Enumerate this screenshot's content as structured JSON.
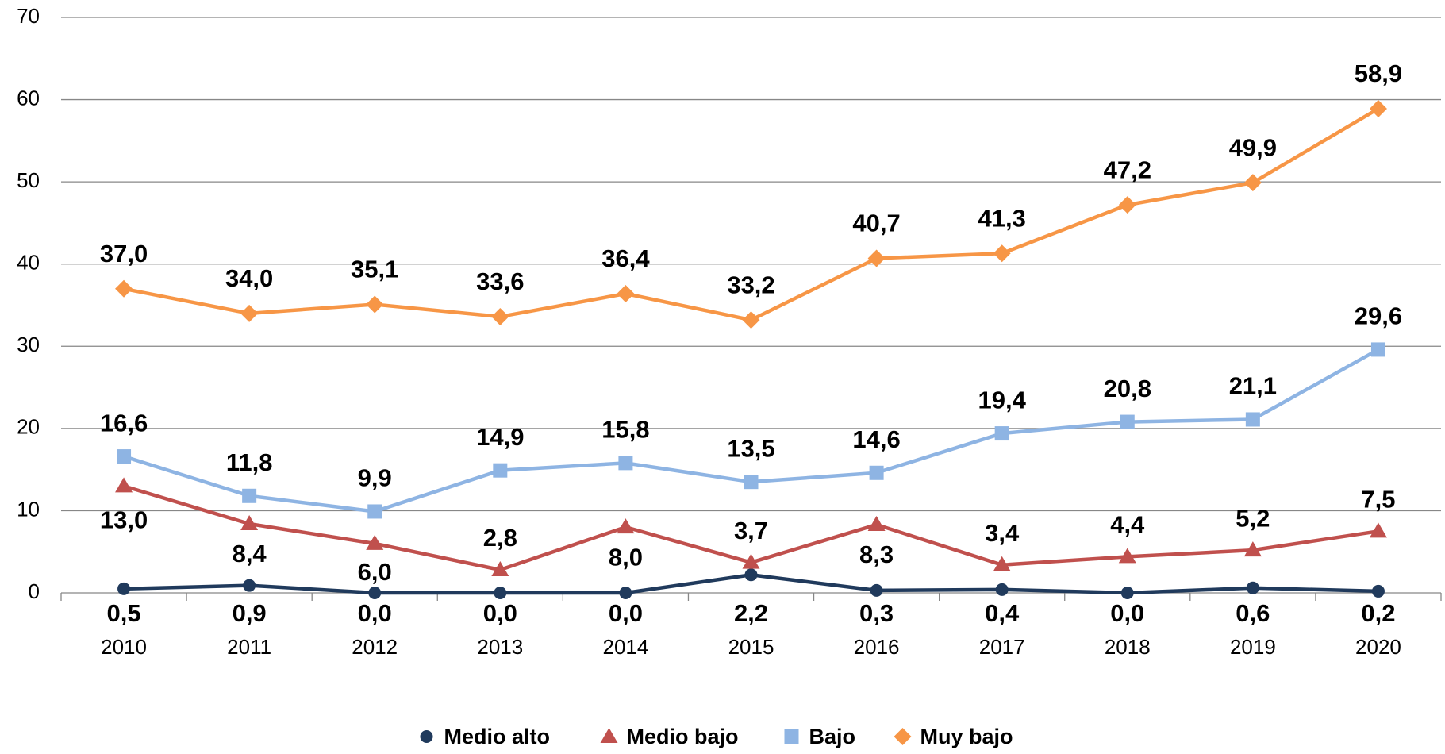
{
  "chart_data": {
    "type": "line",
    "categories": [
      "2010",
      "2011",
      "2012",
      "2013",
      "2014",
      "2015",
      "2016",
      "2017",
      "2018",
      "2019",
      "2020"
    ],
    "ylim": [
      0,
      70
    ],
    "yticks": [
      0,
      10,
      20,
      30,
      40,
      50,
      60,
      70
    ],
    "grid": true,
    "legend": "bottom",
    "series": [
      {
        "name": "Medio alto",
        "color": "#203a5c",
        "marker": "circle",
        "values": [
          0.5,
          0.9,
          0.0,
          0.0,
          0.0,
          2.2,
          0.3,
          0.4,
          0.0,
          0.6,
          0.2
        ],
        "value_labels": [
          "0,5",
          "0,9",
          "0,0",
          "0,0",
          "0,0",
          "2,2",
          "0,3",
          "0,4",
          "0,0",
          "0,6",
          "0,2"
        ]
      },
      {
        "name": "Medio bajo",
        "color": "#c0504d",
        "marker": "triangle",
        "values": [
          13.0,
          8.4,
          6.0,
          2.8,
          8.0,
          3.7,
          8.3,
          3.4,
          4.4,
          5.2,
          7.5
        ],
        "value_labels": [
          "13,0",
          "8,4",
          "6,0",
          "2,8",
          "8,0",
          "3,7",
          "8,3",
          "3,4",
          "4,4",
          "5,2",
          "7,5"
        ]
      },
      {
        "name": "Bajo",
        "color": "#8eb4e3",
        "marker": "square",
        "values": [
          16.6,
          11.8,
          9.9,
          14.9,
          15.8,
          13.5,
          14.6,
          19.4,
          20.8,
          21.1,
          29.6
        ],
        "value_labels": [
          "16,6",
          "11,8",
          "9,9",
          "14,9",
          "15,8",
          "13,5",
          "14,6",
          "19,4",
          "20,8",
          "21,1",
          "29,6"
        ]
      },
      {
        "name": "Muy bajo",
        "color": "#f79646",
        "marker": "diamond",
        "values": [
          37.0,
          34.0,
          35.1,
          33.6,
          36.4,
          33.2,
          40.7,
          41.3,
          47.2,
          49.9,
          58.9
        ],
        "value_labels": [
          "37,0",
          "34,0",
          "35,1",
          "33,6",
          "36,4",
          "33,2",
          "40,7",
          "41,3",
          "47,2",
          "49,9",
          "58,9"
        ]
      }
    ]
  }
}
